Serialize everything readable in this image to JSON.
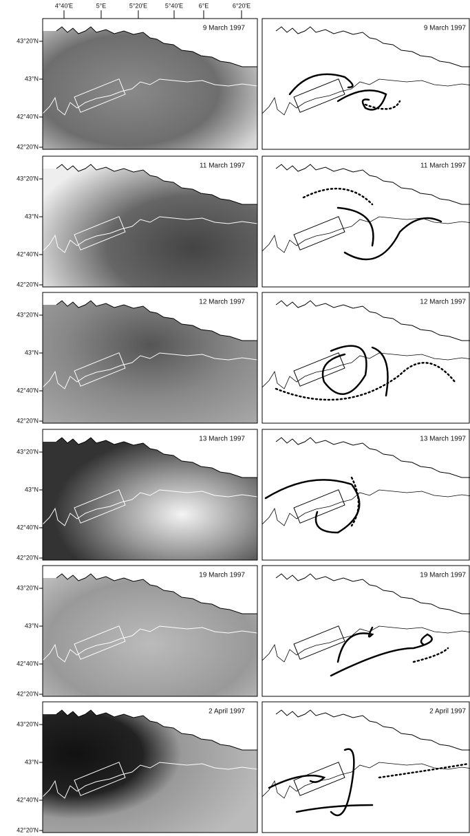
{
  "x_axis": {
    "labels": [
      "4°40'E",
      "5°E",
      "5°20'E",
      "5°40'E",
      "6°E",
      "6°20'E"
    ]
  },
  "y_axis": {
    "labels": [
      "43°20'N",
      "43°N",
      "42°40'N",
      "42°20'N"
    ]
  },
  "panels": [
    {
      "date": "9 March 1997"
    },
    {
      "date": "11 March 1997"
    },
    {
      "date": "12 March 1997"
    },
    {
      "date": "13 March 1997"
    },
    {
      "date": "19 March 1997"
    },
    {
      "date": "2 April 1997"
    }
  ]
}
